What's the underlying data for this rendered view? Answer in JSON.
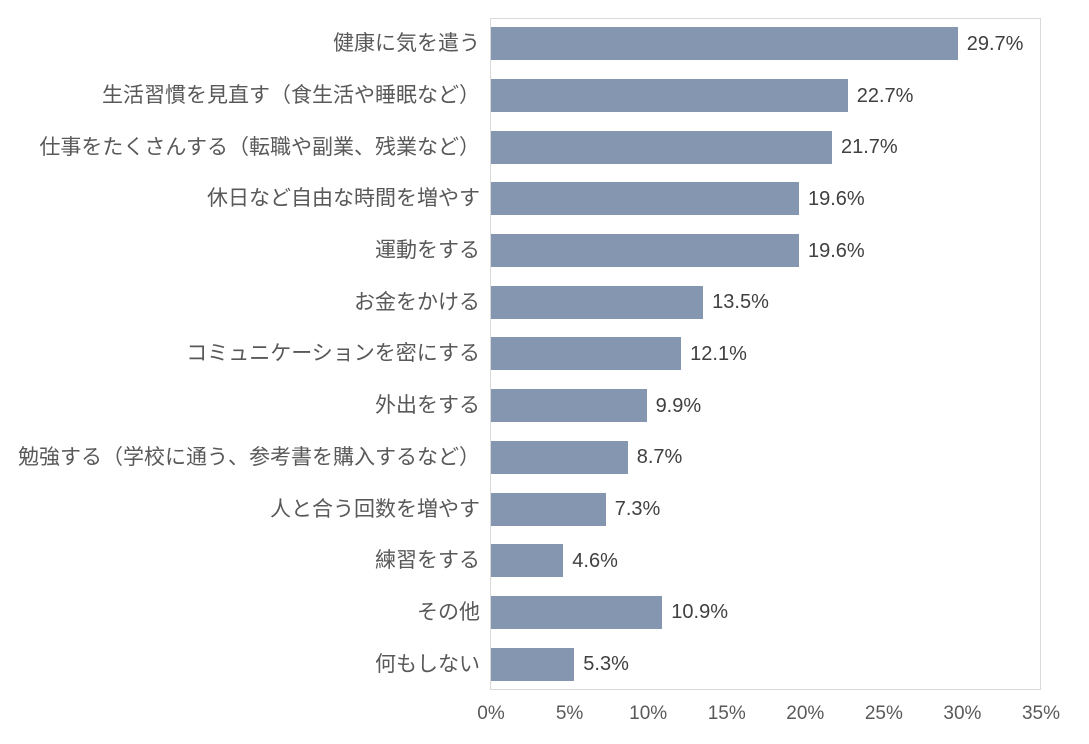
{
  "chart_data": {
    "type": "bar",
    "orientation": "horizontal",
    "title": "",
    "xlabel": "",
    "ylabel": "",
    "categories": [
      "健康に気を遣う",
      "生活習慣を見直す（食生活や睡眠など）",
      "仕事をたくさんする（転職や副業、残業など）",
      "休日など自由な時間を増やす",
      "運動をする",
      "お金をかける",
      "コミュニケーションを密にする",
      "外出をする",
      "勉強する（学校に通う、参考書を購入するなど）",
      "人と合う回数を増やす",
      "練習をする",
      "その他",
      "何もしない"
    ],
    "values": [
      29.7,
      22.7,
      21.7,
      19.6,
      19.6,
      13.5,
      12.1,
      9.9,
      8.7,
      7.3,
      4.6,
      10.9,
      5.3
    ],
    "value_labels": [
      "29.7%",
      "22.7%",
      "21.7%",
      "19.6%",
      "19.6%",
      "13.5%",
      "12.1%",
      "9.9%",
      "8.7%",
      "7.3%",
      "4.6%",
      "10.9%",
      "5.3%"
    ],
    "x_tick_labels": [
      "0%",
      "5%",
      "10%",
      "15%",
      "20%",
      "25%",
      "30%",
      "35%"
    ],
    "xlim": [
      0,
      35
    ],
    "legend": "none",
    "gridlines": "none",
    "data_labels": "outside-end",
    "colors": {
      "bar": "#8496B0",
      "plot_border": "#D9D9D9",
      "category_label": "#595959",
      "value_label": "#404040",
      "tick_label": "#595959",
      "background": "#FFFFFF"
    }
  }
}
